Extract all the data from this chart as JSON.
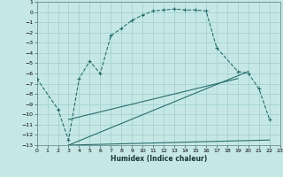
{
  "xlabel": "Humidex (Indice chaleur)",
  "bg_color": "#c5e8e6",
  "grid_color": "#9ecece",
  "line_color": "#2a6e6e",
  "xlim": [
    0,
    23
  ],
  "ylim": [
    -13,
    1
  ],
  "xticks": [
    0,
    1,
    2,
    3,
    4,
    5,
    6,
    7,
    8,
    9,
    10,
    11,
    12,
    13,
    14,
    15,
    16,
    17,
    18,
    19,
    20,
    21,
    22,
    23
  ],
  "yticks": [
    1,
    0,
    -1,
    -2,
    -3,
    -4,
    -5,
    -6,
    -7,
    -8,
    -9,
    -10,
    -11,
    -12,
    -13
  ],
  "curve1_x": [
    0,
    2,
    3,
    4,
    5,
    6,
    7,
    8,
    9,
    10,
    11,
    12,
    13,
    14,
    15,
    16,
    17,
    19,
    20,
    21,
    22
  ],
  "curve1_y": [
    -6.5,
    -9.5,
    -12.5,
    -6.5,
    -4.8,
    -6.0,
    -2.3,
    -1.6,
    -0.8,
    -0.3,
    0.1,
    0.2,
    0.3,
    0.2,
    0.2,
    0.1,
    -3.5,
    -5.8,
    -6.0,
    -7.5,
    -10.5
  ],
  "curve2_x": [
    3,
    22
  ],
  "curve2_y": [
    -13.0,
    -12.5
  ],
  "curve3_x": [
    3,
    20
  ],
  "curve3_y": [
    -13.0,
    -5.8
  ],
  "curve4_x": [
    3,
    19
  ],
  "curve4_y": [
    -10.5,
    -6.5
  ]
}
